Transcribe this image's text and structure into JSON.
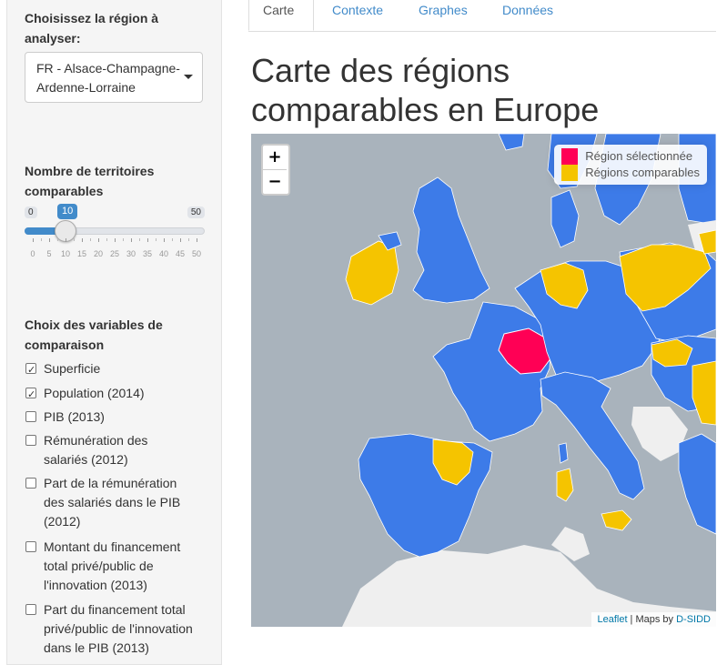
{
  "sidebar": {
    "region_label": "Choisissez la région à analyser:",
    "region_select_value": "FR - Alsace-Champagne-Ardenne-Lorraine",
    "slider_label": "Nombre de territoires comparables",
    "slider": {
      "min": "0",
      "max": "50",
      "value": "10",
      "tick_labels": [
        "0",
        "5",
        "10",
        "15",
        "20",
        "25",
        "30",
        "35",
        "40",
        "45",
        "50"
      ]
    },
    "variables_label": "Choix des variables de comparaison",
    "variables": [
      {
        "label": "Superficie",
        "checked": true
      },
      {
        "label": "Population (2014)",
        "checked": true
      },
      {
        "label": "PIB (2013)",
        "checked": false
      },
      {
        "label": "Rémunération des salariés (2012)",
        "checked": false
      },
      {
        "label": "Part de la rémunération des salariés dans le PIB (2012)",
        "checked": false
      },
      {
        "label": "Montant du financement total privé/public de l'innovation (2013)",
        "checked": false
      },
      {
        "label": "Part du financement total privé/public de l'innovation dans le PIB (2013)",
        "checked": false
      }
    ]
  },
  "tabs": [
    "Carte",
    "Contexte",
    "Graphes",
    "Données"
  ],
  "active_tab": "Carte",
  "page_title": "Carte des régions comparables en Europe",
  "map": {
    "zoom_in": "+",
    "zoom_out": "−",
    "legend": {
      "selected_label": "Région sélectionnée",
      "comparable_label": "Régions comparables"
    },
    "attribution": {
      "leaflet": "Leaflet",
      "separator": " | Maps by ",
      "provider": "D-SIDD"
    },
    "colors": {
      "selected": "#ff0055",
      "comparable": "#f5c400",
      "region": "#3d7be8",
      "sea": "#a9b3bc",
      "land": "#efefef"
    }
  }
}
